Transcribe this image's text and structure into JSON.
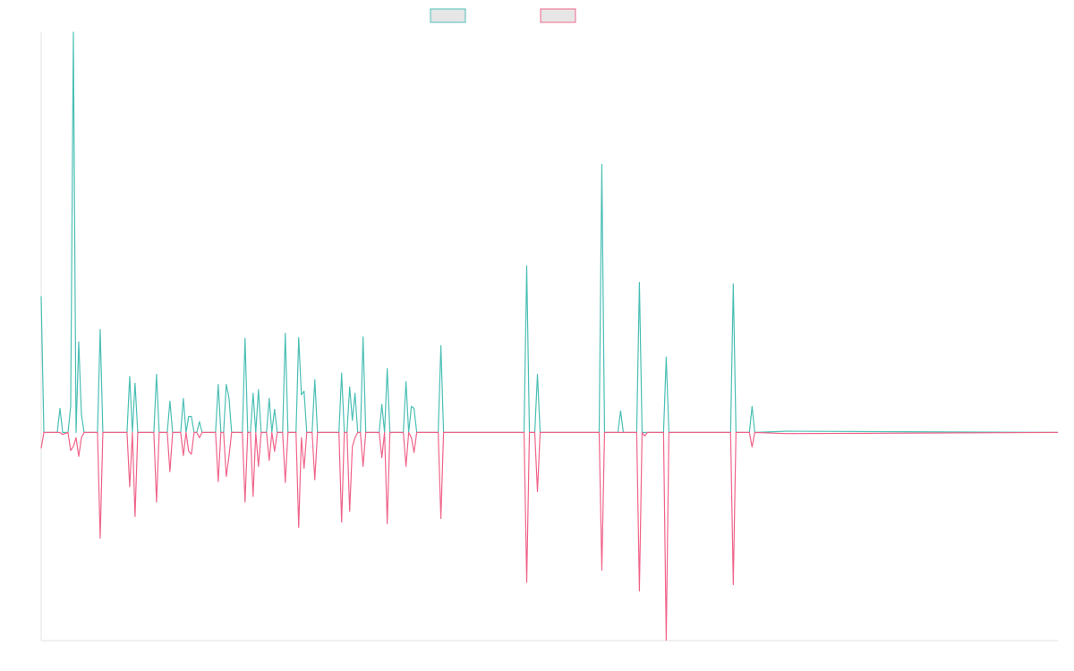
{
  "chart_data": {
    "type": "line",
    "x": [
      0,
      1,
      6,
      7,
      8,
      10,
      11,
      12,
      13,
      14,
      15,
      16,
      21,
      22,
      23,
      32,
      33,
      34,
      35,
      36,
      42,
      43,
      44,
      47,
      48,
      49,
      52,
      53,
      54,
      55,
      56,
      57,
      58,
      59,
      60,
      65,
      66,
      67,
      68,
      69,
      70,
      71,
      75,
      76,
      77,
      78,
      79,
      80,
      81,
      82,
      84,
      85,
      86,
      87,
      88,
      90,
      91,
      92,
      95,
      96,
      97,
      98,
      99,
      101,
      102,
      103,
      111,
      112,
      113,
      114,
      115,
      116,
      117,
      118,
      119,
      120,
      121,
      126,
      127,
      128,
      129,
      130,
      135,
      136,
      137,
      138,
      139,
      140,
      148,
      149,
      150,
      180,
      181,
      182,
      184,
      185,
      186,
      208,
      209,
      210,
      215,
      216,
      217,
      222,
      223,
      224,
      225,
      226,
      232,
      233,
      234,
      257,
      258,
      259,
      264,
      265,
      266,
      278,
      379
    ],
    "series": [
      {
        "color": "#4bbfb5",
        "values": [
          34,
          0,
          0,
          6,
          0,
          0,
          6.5,
          100,
          0,
          22.6,
          4.5,
          0,
          0,
          25.7,
          0,
          0,
          14,
          0,
          12.3,
          0,
          0,
          14.5,
          0,
          0,
          7.8,
          0,
          0,
          8.5,
          0,
          4,
          4,
          0,
          0,
          2.7,
          0,
          0,
          12,
          0,
          0,
          12,
          8.7,
          0,
          0,
          23.5,
          0,
          0,
          9.8,
          0,
          10.7,
          0,
          0,
          8.5,
          0,
          5.8,
          0,
          0,
          24.8,
          0,
          0,
          23.7,
          9.4,
          10.3,
          0,
          0,
          13.2,
          0,
          0,
          14.8,
          0,
          0,
          11.4,
          3,
          9.8,
          0,
          0,
          23.9,
          0,
          0,
          7,
          0,
          16,
          0,
          0,
          12.7,
          0,
          6.5,
          6,
          0,
          0,
          21.7,
          0,
          0,
          41.6,
          0,
          0,
          14.5,
          0,
          0,
          67,
          0,
          0,
          5.4,
          0,
          0,
          37.5,
          0,
          0,
          0,
          0,
          18.8,
          0,
          0,
          37.1,
          0,
          0,
          6.5,
          0,
          0.3,
          0
        ]
      },
      {
        "color": "#f0648a",
        "values": [
          -4,
          0,
          0,
          0,
          -0.5,
          0,
          -4.5,
          -3.5,
          -1.3,
          -6,
          -1.3,
          0,
          0,
          -26.4,
          0,
          0,
          -13.6,
          0,
          -21,
          0,
          0,
          -17.4,
          0,
          0,
          -9.8,
          0,
          0,
          -5.8,
          0,
          -4.7,
          -5.4,
          0,
          0,
          -1.3,
          0,
          0,
          -12.3,
          0,
          0,
          -11,
          -6,
          0,
          0,
          -17.4,
          0,
          0,
          -16,
          0,
          -8.5,
          0,
          0,
          -7,
          0,
          -4.7,
          0,
          0,
          -12.5,
          0,
          0,
          -23.7,
          -1.3,
          -9,
          0,
          0,
          -11.8,
          0,
          0,
          -22.4,
          0,
          0,
          -19.7,
          -3.5,
          -1.3,
          0,
          0,
          -8.5,
          0,
          0,
          -6.3,
          0,
          -22.8,
          0,
          0,
          -8.5,
          0,
          -1.3,
          -5,
          0,
          0,
          -21.5,
          0,
          0,
          -37.5,
          0,
          0,
          -14.8,
          0,
          0,
          -34.4,
          0,
          0,
          0,
          0,
          0,
          -39.6,
          0,
          -0.9,
          0,
          0,
          -51.9,
          0,
          0,
          -38,
          0,
          0,
          -3.6,
          0,
          -0.3,
          0
        ]
      }
    ],
    "xlim": [
      0,
      379
    ],
    "ylim": [
      -52,
      100
    ]
  }
}
